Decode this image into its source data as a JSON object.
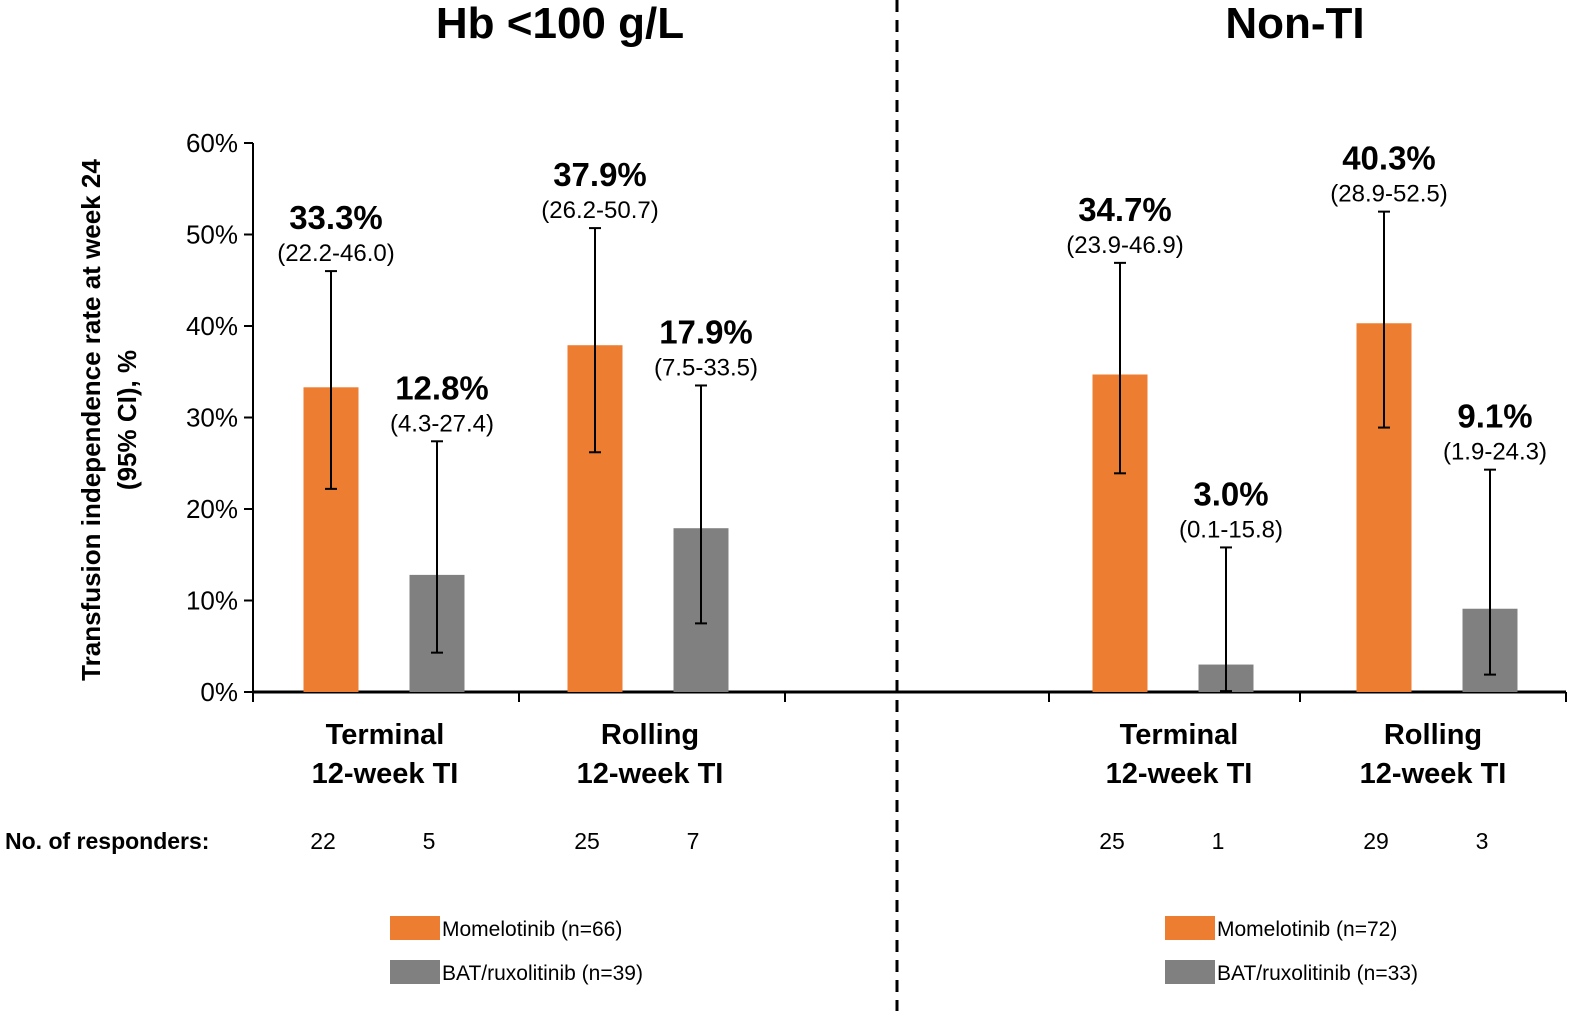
{
  "chart_data": {
    "type": "bar",
    "y_axis": {
      "label_line1": "Transfusion independence rate at week 24",
      "label_line2": "(95% CI), %",
      "ylim": [
        0,
        60
      ],
      "ticks": [
        0,
        10,
        20,
        30,
        40,
        50,
        60
      ],
      "tick_labels": [
        "0%",
        "10%",
        "20%",
        "30%",
        "40%",
        "50%",
        "60%"
      ]
    },
    "responders_label": "No. of responders:",
    "colors": {
      "Momelotinib": "#ED7D31",
      "BAT/ruxolitinib": "#808080"
    },
    "panels": [
      {
        "title": "Hb <100 g/L",
        "categories": [
          {
            "line1": "Terminal",
            "line2": "12-week TI",
            "bars": [
              {
                "series": "Momelotinib",
                "value": 33.3,
                "label": "33.3%",
                "ci_low": 22.2,
                "ci_high": 46.0,
                "ci_label": "(22.2-46.0)",
                "responders": "22"
              },
              {
                "series": "BAT/ruxolitinib",
                "value": 12.8,
                "label": "12.8%",
                "ci_low": 4.3,
                "ci_high": 27.4,
                "ci_label": "(4.3-27.4)",
                "responders": "5"
              }
            ]
          },
          {
            "line1": "Rolling",
            "line2": "12-week TI",
            "bars": [
              {
                "series": "Momelotinib",
                "value": 37.9,
                "label": "37.9%",
                "ci_low": 26.2,
                "ci_high": 50.7,
                "ci_label": "(26.2-50.7)",
                "responders": "25"
              },
              {
                "series": "BAT/ruxolitinib",
                "value": 17.9,
                "label": "17.9%",
                "ci_low": 7.5,
                "ci_high": 33.5,
                "ci_label": "(7.5-33.5)",
                "responders": "7"
              }
            ]
          }
        ],
        "legend": [
          {
            "series": "Momelotinib",
            "text": "Momelotinib (n=66)"
          },
          {
            "series": "BAT/ruxolitinib",
            "text": "BAT/ruxolitinib (n=39)"
          }
        ]
      },
      {
        "title": "Non-TI",
        "categories": [
          {
            "line1": "Terminal",
            "line2": "12-week TI",
            "bars": [
              {
                "series": "Momelotinib",
                "value": 34.7,
                "label": "34.7%",
                "ci_low": 23.9,
                "ci_high": 46.9,
                "ci_label": "(23.9-46.9)",
                "responders": "25"
              },
              {
                "series": "BAT/ruxolitinib",
                "value": 3.0,
                "label": "3.0%",
                "ci_low": 0.1,
                "ci_high": 15.8,
                "ci_label": "(0.1-15.8)",
                "responders": "1"
              }
            ]
          },
          {
            "line1": "Rolling",
            "line2": "12-week TI",
            "bars": [
              {
                "series": "Momelotinib",
                "value": 40.3,
                "label": "40.3%",
                "ci_low": 28.9,
                "ci_high": 52.5,
                "ci_label": "(28.9-52.5)",
                "responders": "29"
              },
              {
                "series": "BAT/ruxolitinib",
                "value": 9.1,
                "label": "9.1%",
                "ci_low": 1.9,
                "ci_high": 24.3,
                "ci_label": "(1.9-24.3)",
                "responders": "3"
              }
            ]
          }
        ],
        "legend": [
          {
            "series": "Momelotinib",
            "text": "Momelotinib (n=72)"
          },
          {
            "series": "BAT/ruxolitinib",
            "text": "BAT/ruxolitinib (n=33)"
          }
        ]
      }
    ]
  }
}
